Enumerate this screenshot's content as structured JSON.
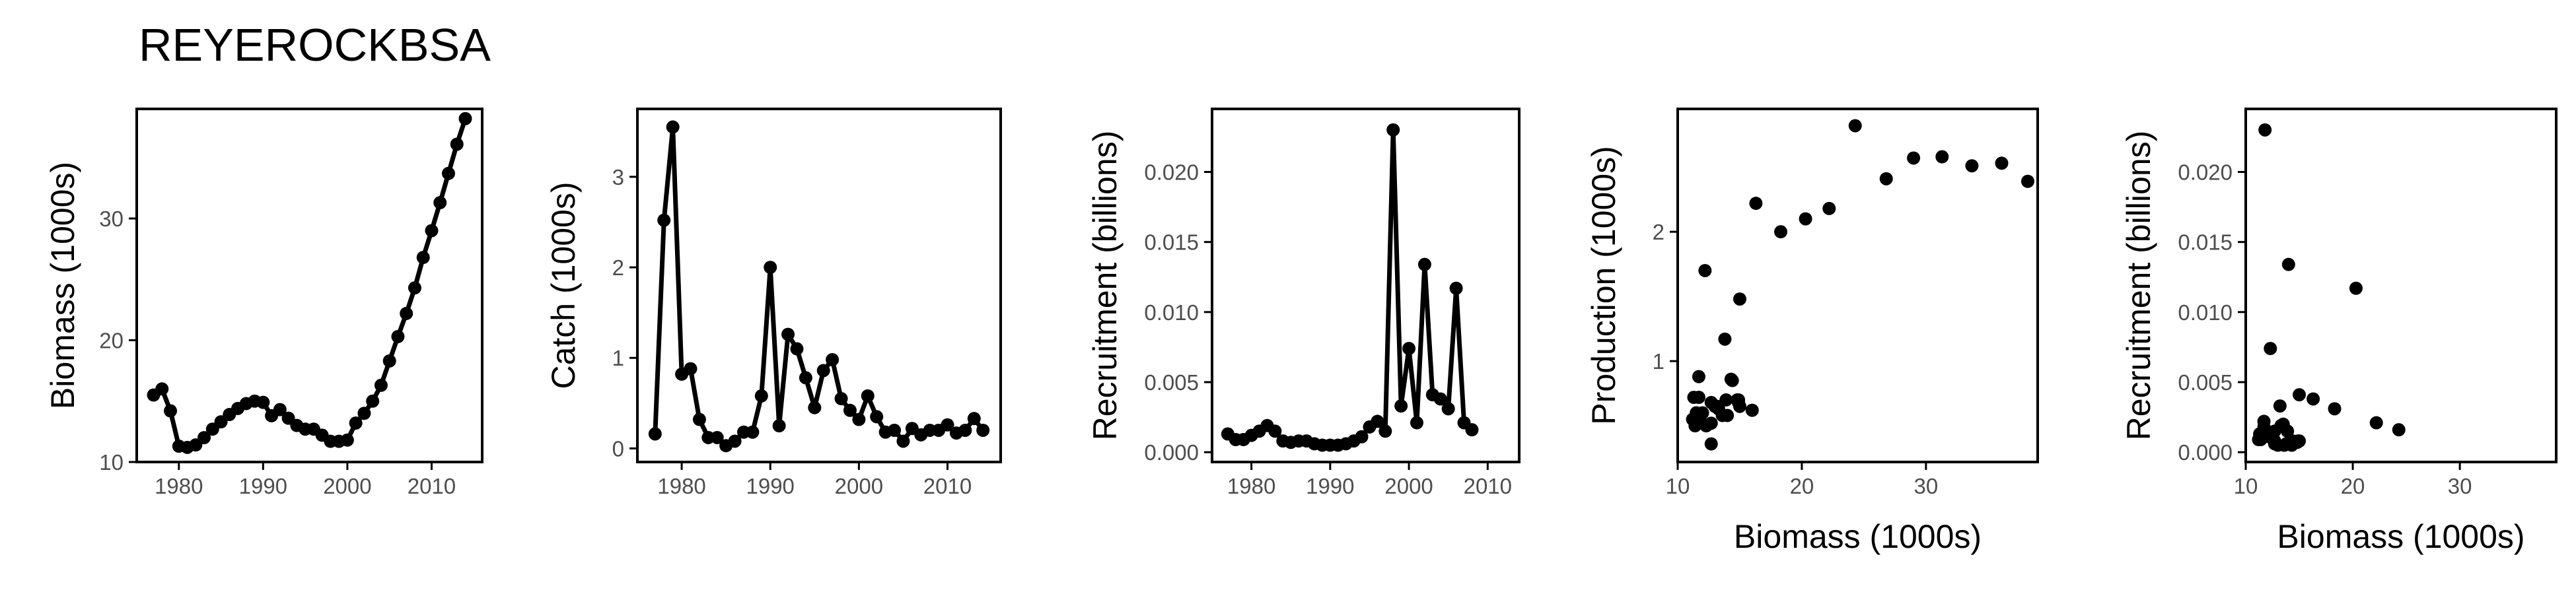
{
  "title": "REYEROCKBSA",
  "colors": {
    "ink": "#000000",
    "tick_text": "#4d4d4d",
    "background": "#ffffff"
  },
  "chart_data": [
    {
      "type": "line",
      "xlabel": "",
      "ylabel": "Biomass (1000s)",
      "xlim": [
        1975,
        2016
      ],
      "ylim": [
        10,
        39
      ],
      "xticks": [
        1980,
        1990,
        2000,
        2010
      ],
      "yticks": [
        10,
        20,
        30
      ],
      "markers": true,
      "x": [
        1977,
        1978,
        1979,
        1980,
        1981,
        1982,
        1983,
        1984,
        1985,
        1986,
        1987,
        1988,
        1989,
        1990,
        1991,
        1992,
        1993,
        1994,
        1995,
        1996,
        1997,
        1998,
        1999,
        2000,
        2001,
        2002,
        2003,
        2004,
        2005,
        2006,
        2007,
        2008,
        2009,
        2010,
        2011,
        2012,
        2013,
        2014
      ],
      "y": [
        15.5,
        16.0,
        14.2,
        11.3,
        11.2,
        11.4,
        12.0,
        12.7,
        13.3,
        13.9,
        14.4,
        14.8,
        15.0,
        14.9,
        13.8,
        14.3,
        13.6,
        13.0,
        12.7,
        12.7,
        12.2,
        11.7,
        11.7,
        11.8,
        13.2,
        14.0,
        15.0,
        16.3,
        18.3,
        20.3,
        22.2,
        24.3,
        26.8,
        29.0,
        31.3,
        33.7,
        36.1,
        38.2
      ]
    },
    {
      "type": "line",
      "xlabel": "",
      "ylabel": "Catch (1000s)",
      "xlim": [
        1975,
        2016
      ],
      "ylim": [
        -0.15,
        3.75
      ],
      "xticks": [
        1980,
        1990,
        2000,
        2010
      ],
      "yticks": [
        0,
        1,
        2,
        3
      ],
      "markers": true,
      "x": [
        1977,
        1978,
        1979,
        1980,
        1981,
        1982,
        1983,
        1984,
        1985,
        1986,
        1987,
        1988,
        1989,
        1990,
        1991,
        1992,
        1993,
        1994,
        1995,
        1996,
        1997,
        1998,
        1999,
        2000,
        2001,
        2002,
        2003,
        2004,
        2005,
        2006,
        2007,
        2008,
        2009,
        2010,
        2011,
        2012,
        2013,
        2014
      ],
      "y": [
        0.16,
        2.52,
        3.55,
        0.82,
        0.88,
        0.32,
        0.12,
        0.12,
        0.03,
        0.08,
        0.18,
        0.18,
        0.58,
        2.0,
        0.25,
        1.26,
        1.1,
        0.78,
        0.45,
        0.86,
        0.98,
        0.55,
        0.42,
        0.32,
        0.58,
        0.35,
        0.18,
        0.2,
        0.08,
        0.22,
        0.15,
        0.2,
        0.2,
        0.26,
        0.17,
        0.2,
        0.33,
        0.2
      ]
    },
    {
      "type": "line",
      "xlabel": "",
      "ylabel": "Recruitment (billions)",
      "xlim": [
        1975,
        2014
      ],
      "ylim": [
        -0.0007,
        0.0245
      ],
      "xticks": [
        1980,
        1990,
        2000,
        2010
      ],
      "yticks": [
        0.0,
        0.005,
        0.01,
        0.015,
        0.02
      ],
      "ytick_labels": [
        "0.000",
        "0.005",
        "0.010",
        "0.015",
        "0.020"
      ],
      "markers": true,
      "x": [
        1977,
        1978,
        1979,
        1980,
        1981,
        1982,
        1983,
        1984,
        1985,
        1986,
        1987,
        1988,
        1989,
        1990,
        1991,
        1992,
        1993,
        1994,
        1995,
        1996,
        1997,
        1998,
        1999,
        2000,
        2001,
        2002,
        2003,
        2004,
        2005,
        2006,
        2007,
        2008
      ],
      "y": [
        0.0013,
        0.0009,
        0.0009,
        0.0012,
        0.0015,
        0.0019,
        0.0015,
        0.0008,
        0.0007,
        0.0008,
        0.0008,
        0.0006,
        0.0005,
        0.0005,
        0.0005,
        0.0006,
        0.0008,
        0.0011,
        0.0018,
        0.0022,
        0.0015,
        0.023,
        0.0033,
        0.0074,
        0.0021,
        0.0134,
        0.0041,
        0.0038,
        0.0031,
        0.0117,
        0.0021,
        0.0016
      ]
    },
    {
      "type": "scatter",
      "xlabel": "Biomass (1000s)",
      "ylabel": "Production (1000s)",
      "xlim": [
        10,
        39
      ],
      "ylim": [
        0.22,
        2.95
      ],
      "xticks": [
        10,
        20,
        30
      ],
      "yticks": [
        1,
        2
      ],
      "x": [
        11.3,
        11.2,
        11.4,
        12.0,
        12.7,
        13.3,
        13.9,
        14.4,
        14.8,
        15.0,
        14.9,
        13.8,
        14.3,
        13.6,
        13.0,
        12.7,
        12.7,
        12.2,
        11.7,
        11.7,
        11.8,
        13.2,
        14.0,
        15.0,
        16.3,
        18.3,
        20.3,
        22.2,
        24.3,
        26.8,
        29.0,
        31.3,
        33.7,
        36.1,
        38.2,
        11.5,
        12.3,
        14.9,
        16.0
      ],
      "y": [
        0.72,
        0.55,
        0.5,
        0.6,
        0.36,
        0.63,
        0.7,
        0.85,
        0.7,
        1.48,
        0.7,
        1.17,
        0.86,
        0.58,
        0.65,
        0.52,
        0.68,
        1.7,
        0.72,
        0.88,
        0.54,
        0.65,
        0.58,
        0.65,
        2.22,
        2.0,
        2.1,
        2.18,
        2.82,
        2.41,
        2.57,
        2.58,
        2.51,
        2.53,
        2.39,
        0.6,
        0.5,
        0.68,
        0.62
      ]
    },
    {
      "type": "scatter",
      "xlabel": "Biomass (1000s)",
      "ylabel": "Recruitment (billions)",
      "xlim": [
        10,
        39
      ],
      "ylim": [
        -0.0007,
        0.0245
      ],
      "xticks": [
        10,
        20,
        30
      ],
      "yticks": [
        0.0,
        0.005,
        0.01,
        0.015,
        0.02
      ],
      "ytick_labels": [
        "0.000",
        "0.005",
        "0.010",
        "0.015",
        "0.020"
      ],
      "x": [
        11.3,
        11.2,
        11.4,
        12.0,
        12.7,
        13.3,
        13.9,
        14.4,
        14.8,
        15.0,
        14.9,
        13.8,
        14.3,
        13.6,
        13.0,
        12.7,
        12.7,
        12.2,
        11.7,
        11.7,
        11.8,
        13.2,
        14.0,
        15.0,
        16.3,
        18.3,
        20.3,
        22.2,
        24.3,
        12.3,
        11.9,
        13.5
      ],
      "y": [
        0.0013,
        0.0009,
        0.0009,
        0.0012,
        0.0015,
        0.0019,
        0.0015,
        0.0008,
        0.0007,
        0.0008,
        0.0008,
        0.0006,
        0.0005,
        0.0005,
        0.0005,
        0.0006,
        0.0008,
        0.0011,
        0.0018,
        0.0022,
        0.023,
        0.0033,
        0.0134,
        0.0041,
        0.0038,
        0.0031,
        0.0117,
        0.0021,
        0.0016,
        0.0074,
        0.0012,
        0.002
      ]
    }
  ]
}
